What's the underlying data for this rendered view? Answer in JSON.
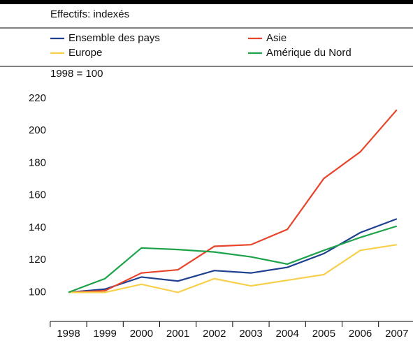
{
  "chart_data": {
    "type": "line",
    "subtitle": "Effectifs: indexés",
    "note": "1998 = 100",
    "categories": [
      "1998",
      "1999",
      "2000",
      "2001",
      "2002",
      "2003",
      "2004",
      "2005",
      "2006",
      "2007"
    ],
    "series": [
      {
        "name": "Ensemble des pays",
        "color": "#1f3f8f",
        "values": [
          100,
          102,
          109.5,
          107,
          113.5,
          112,
          115.5,
          124,
          137,
          145.5
        ]
      },
      {
        "name": "Asie",
        "color": "#e8442a",
        "values": [
          100,
          101,
          112,
          114,
          128.5,
          129.5,
          139,
          170.5,
          187,
          213
        ]
      },
      {
        "name": "Europe",
        "color": "#f7cf4a",
        "values": [
          100,
          100,
          105,
          100,
          108.5,
          104,
          107.5,
          111,
          126,
          129.5
        ]
      },
      {
        "name": "Amérique du Nord",
        "color": "#1ea34a",
        "values": [
          100,
          108.5,
          127.5,
          126.5,
          125,
          122,
          117.5,
          126,
          134,
          141
        ]
      }
    ],
    "ylim": [
      82,
      222
    ],
    "yticks": [
      100,
      120,
      140,
      160,
      180,
      200,
      220
    ],
    "grid": false
  }
}
